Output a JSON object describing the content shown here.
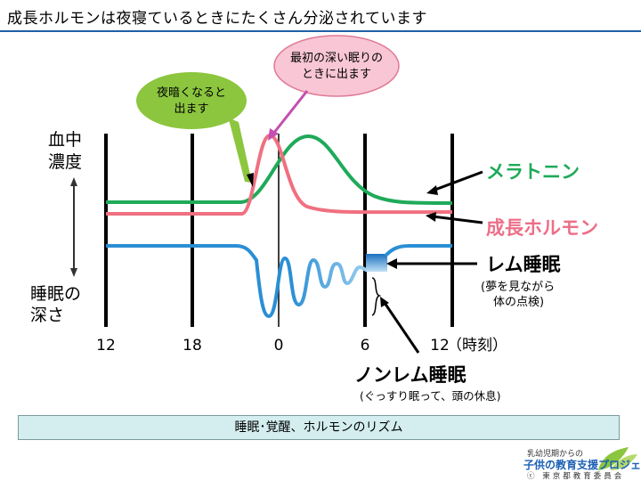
{
  "title": "成長ホルモンは夜寝ているときにたくさん分泌されています",
  "bubbles": {
    "green": [
      "夜暗くなると",
      "出ます"
    ],
    "pink": [
      "最初の深い眠りの",
      "ときに出ます"
    ]
  },
  "left_labels": {
    "top": [
      "血中",
      "濃度"
    ],
    "bottom": [
      "睡眠の",
      "深さ"
    ]
  },
  "x_ticks": [
    "12",
    "18",
    "0",
    "6",
    "12"
  ],
  "x_unit": "（時刻）",
  "legend": {
    "melatonin": "メラトニン",
    "gh": "成長ホルモン",
    "rem": "レム睡眠",
    "rem_sub": [
      "(夢を見ながら",
      "体の点検)"
    ],
    "nonrem": "ノンレム睡眠",
    "nonrem_sub": "(ぐっすり眠って、頭の休息)"
  },
  "caption": "睡眠･覚醒、ホルモンのリズム",
  "logo": {
    "line1": "乳幼児期からの",
    "line2": "子供の教育支援プロジェクト",
    "line3": "ⓒ 東京都教育委員会"
  },
  "colors": {
    "melatonin": "#1faa59",
    "gh": "#f07080",
    "sleep": "#2a8fd4",
    "pink_bubble": "#f8c6d4",
    "green_bubble": "#8cc63f",
    "caption_bg": "#d4eef0"
  }
}
